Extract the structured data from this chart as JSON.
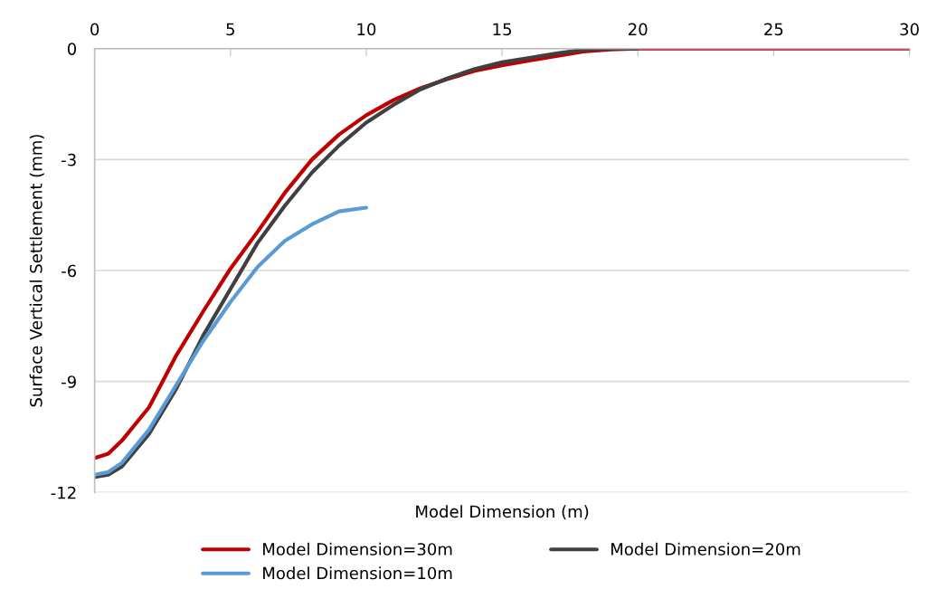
{
  "chart_data": {
    "type": "line",
    "xlabel": "Model Dimension (m)",
    "ylabel": "Surface Vertical Settlement (mm)",
    "xlim": [
      0,
      30
    ],
    "xticks": [
      0,
      5,
      10,
      15,
      20,
      25,
      30
    ],
    "ylim": [
      -12,
      0
    ],
    "yticks": [
      -12,
      -9,
      -6,
      -3,
      0
    ],
    "grid": "y",
    "legend": "bottom",
    "marker": "none",
    "line_style": "solid",
    "series": [
      {
        "name": "Model Dimension=30m",
        "color": "#c00000",
        "x": [
          0,
          0.5,
          1,
          2,
          2.5,
          3,
          4,
          5,
          6,
          7,
          8,
          9,
          10,
          11,
          12,
          13,
          14,
          15,
          16,
          17,
          18,
          19,
          20,
          22,
          24,
          26,
          28,
          30
        ],
        "values": [
          -11.07,
          -10.95,
          -10.6,
          -9.7,
          -9.0,
          -8.3,
          -7.1,
          -5.95,
          -4.95,
          -3.9,
          -3.0,
          -2.32,
          -1.8,
          -1.39,
          -1.07,
          -0.82,
          -0.6,
          -0.45,
          -0.32,
          -0.2,
          -0.08,
          -0.02,
          0,
          0,
          0,
          0,
          0,
          0
        ]
      },
      {
        "name": "Model Dimension=20m",
        "color": "#404040",
        "x": [
          0,
          0.5,
          1,
          2,
          3,
          4,
          5,
          6,
          7,
          8,
          9,
          10,
          11,
          12,
          13,
          14,
          15,
          16,
          17,
          18,
          19,
          20
        ],
        "values": [
          -11.58,
          -11.52,
          -11.3,
          -10.42,
          -9.2,
          -7.75,
          -6.5,
          -5.25,
          -4.25,
          -3.35,
          -2.62,
          -2.0,
          -1.52,
          -1.1,
          -0.8,
          -0.55,
          -0.37,
          -0.25,
          -0.13,
          -0.03,
          0,
          0
        ]
      },
      {
        "name": "Model Dimension=10m",
        "color": "#5b9bd5",
        "x": [
          0,
          0.5,
          1,
          2,
          3,
          4,
          5,
          6,
          7,
          8,
          9,
          10
        ],
        "values": [
          -11.52,
          -11.45,
          -11.2,
          -10.3,
          -9.1,
          -7.9,
          -6.85,
          -5.9,
          -5.2,
          -4.75,
          -4.4,
          -4.3
        ]
      }
    ]
  }
}
